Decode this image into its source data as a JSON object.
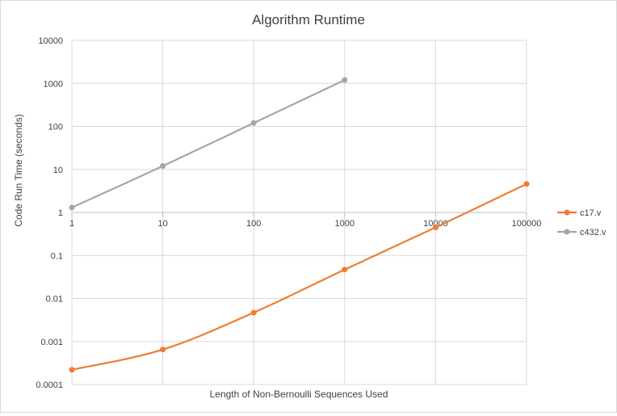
{
  "chart_data": {
    "type": "line",
    "title": "Algorithm Runtime",
    "xlabel": "Length  of Non-Bernoulli Sequences Used",
    "ylabel": "Code Run Time (seconds)",
    "x_scale": "log",
    "y_scale": "log",
    "xlim": [
      1,
      100000
    ],
    "ylim": [
      0.0001,
      10000
    ],
    "grid": true,
    "legend_position": "right",
    "x_ticks": [
      "1",
      "10",
      "100",
      "1000",
      "10000",
      "100000"
    ],
    "y_ticks": [
      "10000",
      "1000",
      "100",
      "10",
      "1",
      "0.1",
      "0.01",
      "0.001",
      "0.0001"
    ],
    "series": [
      {
        "name": "c17.v",
        "color": "#ed7d31",
        "x": [
          1,
          10,
          100,
          1000,
          10000,
          100000
        ],
        "y": [
          0.00022,
          0.00065,
          0.0047,
          0.047,
          0.45,
          4.6
        ]
      },
      {
        "name": "c432.v",
        "color": "#a5a5a5",
        "x": [
          1,
          10,
          100,
          1000
        ],
        "y": [
          1.3,
          12,
          120,
          1200
        ]
      }
    ]
  }
}
